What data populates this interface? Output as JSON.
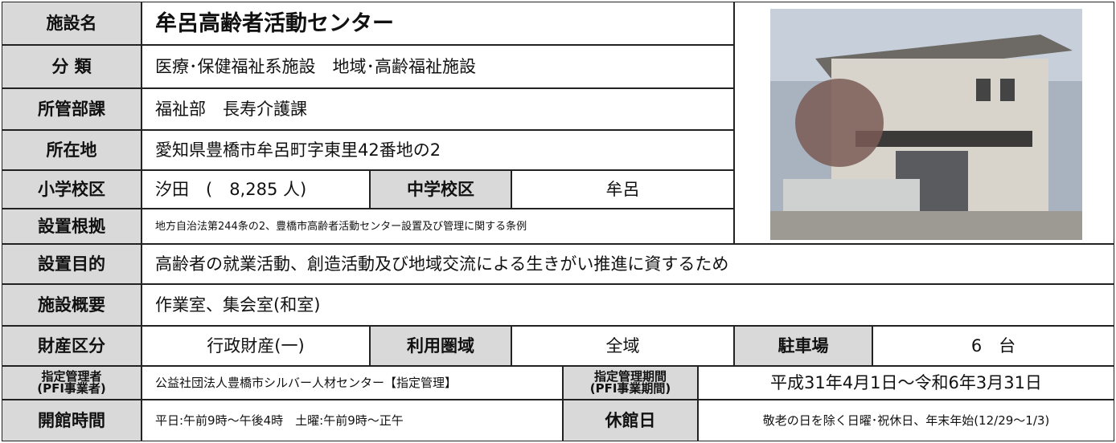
{
  "table": {
    "rows": [
      [
        "施設名",
        "牟呂高齢者活動センター"
      ],
      [
        "分 類",
        "医療･保健福祉系施設　地域･高齢福祉施設"
      ],
      [
        "所管部課",
        "福祉部　長寿介護課"
      ],
      [
        "所在地",
        "愛知県豊橋市牟呂町字東里42番地の2"
      ],
      [
        "小学校区",
        "汐田　(　8,285 人)",
        "中学校区",
        "牟呂"
      ],
      [
        "設置根拠",
        "地方自治法第244条の2、豊橋市高齢者活動センター設置及び管理に関する条例"
      ],
      [
        "設置目的",
        "高齢者の就業活動、創造活動及び地域交流による生きがい推進に資するため"
      ],
      [
        "施設概要",
        "作業室、集会室(和室)"
      ],
      [
        "財産区分",
        "行政財産(一)",
        "利用圏域",
        "全域",
        "駐車場",
        "6　台"
      ],
      [
        "指定管理者\n(PFI事業者)",
        "公益社団法人豊橋市シルバー人材センター【指定管理】",
        "指定管理期間\n(PFI事業期間)",
        "平成31年4月1日～令和6年3月31日"
      ],
      [
        "開館時間",
        "平日:午前9時～午後4時　土曜:午前9時～正午",
        "休館日",
        "敬老の日を除く日曜･祝休日、年末年始(12/29～1/3)"
      ]
    ]
  }
}
